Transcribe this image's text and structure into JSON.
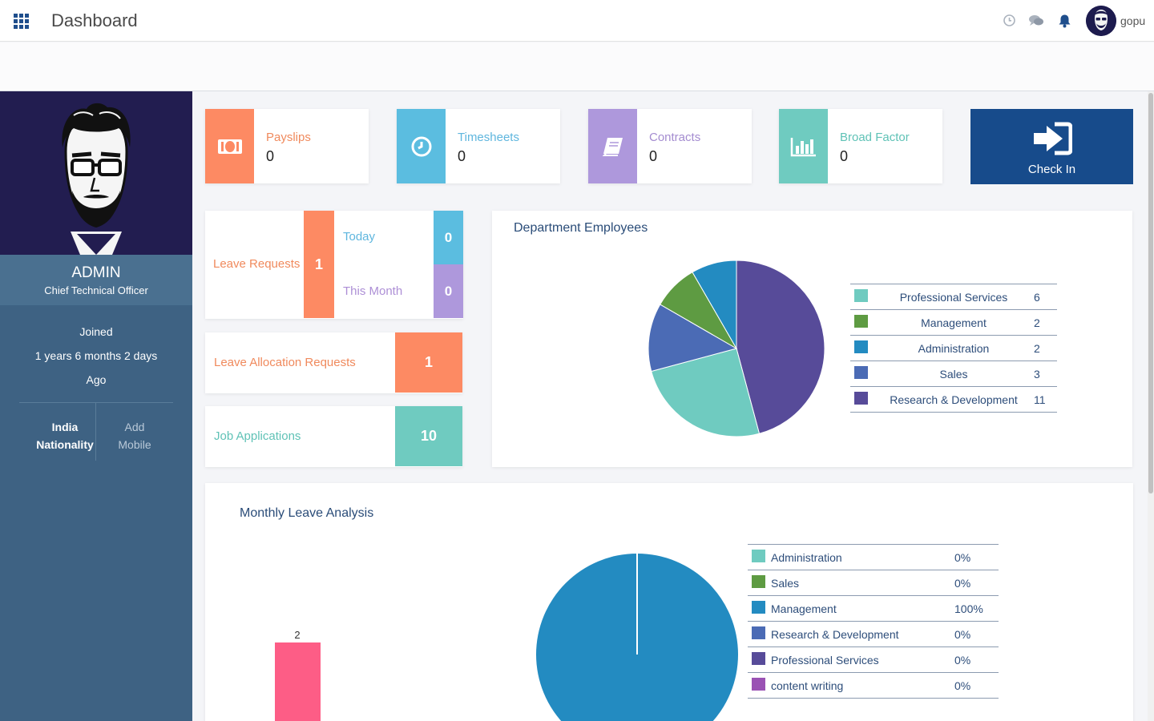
{
  "header": {
    "title": "Dashboard",
    "username": "gopu"
  },
  "profile": {
    "name": "ADMIN",
    "role": "Chief Technical Officer",
    "joined_label": "Joined",
    "joined_duration": "1 years 6 months 2 days",
    "joined_suffix": "Ago",
    "nationality_value": "India",
    "nationality_label": "Nationality",
    "mobile_action": "Add",
    "mobile_label": "Mobile"
  },
  "stats": [
    {
      "label": "Payslips",
      "value": "0",
      "icon": "money-icon",
      "color": "#fd8a63"
    },
    {
      "label": "Timesheets",
      "value": "0",
      "icon": "clock-icon",
      "color": "#5bbde0"
    },
    {
      "label": "Contracts",
      "value": "0",
      "icon": "book-icon",
      "color": "#ae98dc"
    },
    {
      "label": "Broad Factor",
      "value": "0",
      "icon": "bar-chart-icon",
      "color": "#6fcbc0"
    }
  ],
  "checkin": {
    "label": "Check In",
    "icon": "sign-in-icon"
  },
  "leave_requests": {
    "title": "Leave Requests",
    "count": "1",
    "today_label": "Today",
    "today_value": "0",
    "month_label": "This Month",
    "month_value": "0"
  },
  "leave_allocation": {
    "title": "Leave Allocation Requests",
    "value": "1"
  },
  "job_applications": {
    "title": "Job Applications",
    "value": "10"
  },
  "department_panel": {
    "title": "Department Employees"
  },
  "leave_panel": {
    "title": "Monthly Leave Analysis"
  },
  "chart_data": [
    {
      "type": "pie",
      "title": "Department Employees",
      "legend_position": "right",
      "slices": [
        {
          "name": "Professional Services",
          "value": 6,
          "color": "#6fcbc0"
        },
        {
          "name": "Management",
          "value": 2,
          "color": "#5e9b42"
        },
        {
          "name": "Administration",
          "value": 2,
          "color": "#238bc1"
        },
        {
          "name": "Sales",
          "value": 3,
          "color": "#4b6bb5"
        },
        {
          "name": "Research & Development",
          "value": 11,
          "color": "#574b99"
        }
      ]
    },
    {
      "type": "bar",
      "categories": [
        ""
      ],
      "values": [
        2
      ],
      "color": "#fd5d86"
    },
    {
      "type": "pie",
      "title": "Monthly Leave Analysis",
      "legend_position": "right",
      "slices": [
        {
          "name": "Administration",
          "value": 0,
          "label": "0%",
          "color": "#6fcbc0"
        },
        {
          "name": "Sales",
          "value": 0,
          "label": "0%",
          "color": "#5e9b42"
        },
        {
          "name": "Management",
          "value": 100,
          "label": "100%",
          "color": "#238bc1"
        },
        {
          "name": "Research & Development",
          "value": 0,
          "label": "0%",
          "color": "#4b6bb5"
        },
        {
          "name": "Professional Services",
          "value": 0,
          "label": "0%",
          "color": "#574b99"
        },
        {
          "name": "content writing",
          "value": 0,
          "label": "0%",
          "color": "#9a52b4"
        }
      ]
    }
  ]
}
